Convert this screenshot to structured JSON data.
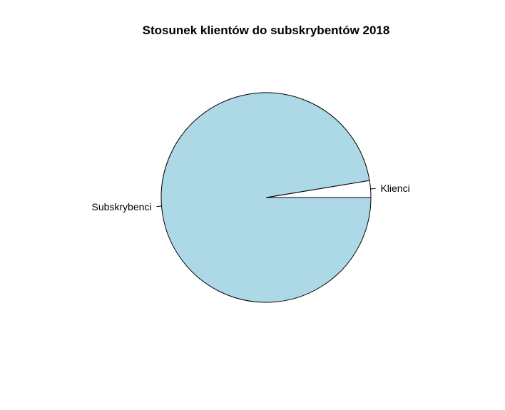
{
  "chart_data": {
    "type": "pie",
    "title": "Stosunek klientów do subskrybentów 2018",
    "start_angle_deg": 0,
    "direction": "counterclockwise",
    "slices": [
      {
        "label": "Klienci",
        "value": 2.6,
        "color": "#ffffff"
      },
      {
        "label": "Subskrybenci",
        "value": 97.4,
        "color": "#add8e6"
      }
    ],
    "border_color": "#000000"
  }
}
